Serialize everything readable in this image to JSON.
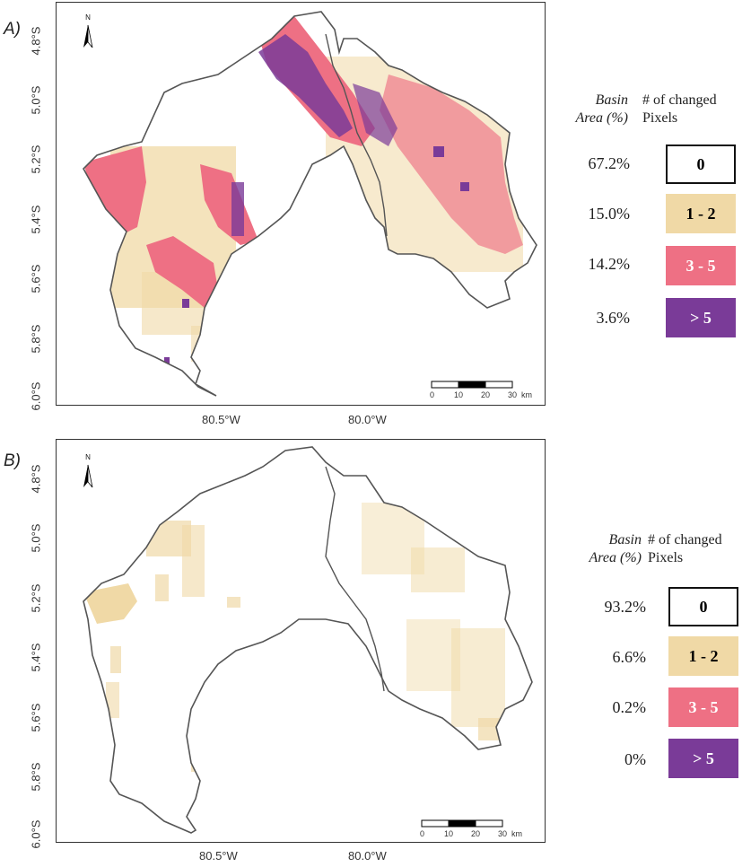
{
  "panels": [
    {
      "letter": "A)",
      "lat_ticks": [
        "4.8°S",
        "5.0°S",
        "5.2°S",
        "5.4°S",
        "5.6°S",
        "5.8°S",
        "6.0°S"
      ],
      "lon_ticks": [
        "80.5°W",
        "80.0°W"
      ],
      "scale_ticks": [
        "0",
        "10",
        "20",
        "30",
        "km"
      ],
      "north": "N",
      "legend": {
        "col1_header": "Basin\nArea (%)",
        "col2_header": "# of changed\nPixels",
        "rows": [
          {
            "pct": "67.2%",
            "label": "0"
          },
          {
            "pct": "15.0%",
            "label": "1 - 2"
          },
          {
            "pct": "14.2%",
            "label": "3 - 5"
          },
          {
            "pct": "3.6%",
            "label": "> 5"
          }
        ]
      }
    },
    {
      "letter": "B)",
      "lat_ticks": [
        "4.8°S",
        "5.0°S",
        "5.2°S",
        "5.4°S",
        "5.6°S",
        "5.8°S",
        "6.0°S"
      ],
      "lon_ticks": [
        "80.5°W",
        "80.0°W"
      ],
      "scale_ticks": [
        "0",
        "10",
        "20",
        "30",
        "km"
      ],
      "north": "N",
      "legend": {
        "col1_header": "Basin\nArea (%)",
        "col2_header": "# of changed\nPixels",
        "rows": [
          {
            "pct": "93.2%",
            "label": "0"
          },
          {
            "pct": "6.6%",
            "label": "1 - 2"
          },
          {
            "pct": "0.2%",
            "label": "3 - 5"
          },
          {
            "pct": "0%",
            "label": "> 5"
          }
        ]
      }
    }
  ],
  "colors": {
    "class_0": "#ffffff",
    "class_1_2": "#f0d9a6",
    "class_3_5": "#ee7084",
    "class_gt5": "#7a3b98",
    "outline": "#555555"
  }
}
